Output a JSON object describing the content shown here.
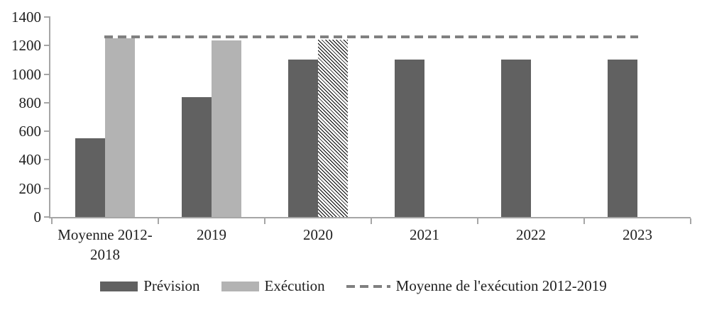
{
  "chart_data": {
    "type": "bar",
    "title": "",
    "xlabel": "",
    "ylabel": "",
    "categories": [
      "Moyenne 2012-2018",
      "2019",
      "2020",
      "2021",
      "2022",
      "2023"
    ],
    "series": [
      {
        "name": "Prévision",
        "color": "#616161",
        "values": [
          550,
          840,
          1100,
          1100,
          1100,
          1100
        ]
      },
      {
        "name": "Exécution",
        "color": "#b3b3b3",
        "values": [
          1250,
          1235,
          1240,
          null,
          null,
          null
        ],
        "patterns": [
          null,
          null,
          "diagonal-hatch",
          null,
          null,
          null
        ]
      }
    ],
    "reference_line": {
      "name": "Moyenne de l'exécution 2012-2019",
      "value": 1260,
      "style": "dashed",
      "color": "#808080"
    },
    "ylim": [
      0,
      1400
    ],
    "yticks": [
      0,
      200,
      400,
      600,
      800,
      1000,
      1200,
      1400
    ],
    "grid": false,
    "legend_position": "bottom"
  },
  "legend": {
    "items": [
      {
        "label": "Prévision",
        "swatch": "rect",
        "color": "#616161"
      },
      {
        "label": "Exécution",
        "swatch": "rect",
        "color": "#b3b3b3"
      },
      {
        "label": "Moyenne de l'exécution 2012-2019",
        "swatch": "dashed-line",
        "color": "#808080"
      }
    ]
  },
  "colors": {
    "axis": "#a6a6a6",
    "text": "#1f1f1f",
    "hatch_line": "#000000",
    "background": "#ffffff"
  }
}
